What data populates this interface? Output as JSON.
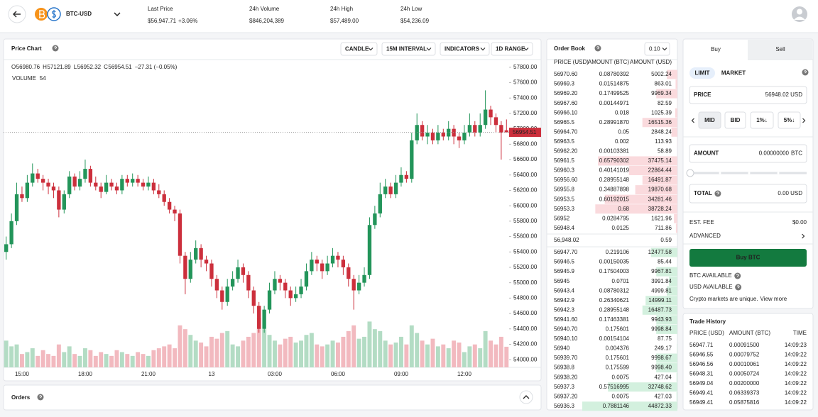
{
  "header": {
    "pair": "BTC-USD",
    "stats": [
      {
        "label": "Last Price",
        "value": "$56,947.71",
        "change": "+3.06%"
      },
      {
        "label": "24h Volume",
        "value": "$846,204,389"
      },
      {
        "label": "24h High",
        "value": "$57,489.00"
      },
      {
        "label": "24h Low",
        "value": "$54,236.09"
      }
    ]
  },
  "chart_data": {
    "type": "candlestick",
    "title": "Price Chart",
    "controls": [
      "CANDLE",
      "15M INTERVAL",
      "INDICATORS",
      "1D RANGE"
    ],
    "legend_keys": [
      "O",
      "H",
      "L",
      "C"
    ],
    "change": "−27.31 (−0.05%)",
    "volume_label": "VOLUME",
    "categories": [
      null,
      null,
      null,
      "15:00",
      null,
      null,
      null,
      null,
      null,
      null,
      null,
      null,
      null,
      null,
      null,
      "18:00",
      null,
      null,
      null,
      null,
      null,
      null,
      null,
      null,
      null,
      null,
      null,
      "21:00",
      null,
      null,
      null,
      null,
      null,
      null,
      null,
      null,
      null,
      null,
      null,
      "13",
      null,
      null,
      null,
      null,
      null,
      null,
      null,
      null,
      null,
      null,
      null,
      "03:00",
      null,
      null,
      null,
      null,
      null,
      null,
      null,
      null,
      null,
      null,
      null,
      "06:00",
      null,
      null,
      null,
      null,
      null,
      null,
      null,
      null,
      null,
      null,
      null,
      "09:00",
      null,
      null,
      null,
      null,
      null,
      null,
      null,
      null,
      null,
      null,
      null,
      "12:00",
      null,
      null,
      null,
      null,
      null,
      null,
      null,
      null
    ],
    "open": [
      55400,
      55500,
      55800,
      56150,
      56100,
      56300,
      56420,
      56350,
      56300,
      56250,
      56200,
      55950,
      56150,
      56380,
      56250,
      56350,
      56480,
      56300,
      56250,
      56180,
      56300,
      56250,
      56200,
      56350,
      56300,
      56350,
      56300,
      56250,
      56300,
      56200,
      56150,
      56050,
      55950,
      55900,
      55350,
      55050,
      55300,
      55450,
      55300,
      55250,
      55050,
      54900,
      54750,
      54950,
      55050,
      55200,
      55100,
      54900,
      54700,
      54400,
      54650,
      54900,
      55050,
      55000,
      54900,
      54800,
      54850,
      54950,
      55150,
      55300,
      55250,
      55150,
      55250,
      55350,
      55300,
      55200,
      55050,
      54900,
      55000,
      55100,
      55750,
      55900,
      56150,
      56250,
      56150,
      56300,
      56400,
      56350,
      56850,
      57050,
      56900,
      56950,
      56850,
      56950,
      56900,
      57000,
      56900,
      56850,
      56950,
      57050,
      56950,
      57050,
      57250,
      57150,
      57050,
      56980.76
    ],
    "high": [
      55600,
      55900,
      56300,
      56250,
      56400,
      56550,
      56480,
      56400,
      56350,
      56300,
      56250,
      56200,
      56450,
      56420,
      56450,
      56600,
      56520,
      56380,
      56300,
      56400,
      56350,
      56300,
      56400,
      56400,
      56420,
      56400,
      56350,
      56380,
      56350,
      56280,
      56200,
      56100,
      56000,
      55950,
      55400,
      55400,
      55550,
      55500,
      55350,
      55300,
      55100,
      54950,
      55050,
      55150,
      55300,
      55250,
      55150,
      54950,
      54750,
      54700,
      55000,
      55150,
      55100,
      55050,
      54950,
      54950,
      55050,
      55250,
      55400,
      55350,
      55300,
      55350,
      55450,
      55400,
      55350,
      55250,
      55100,
      55100,
      55200,
      55850,
      56000,
      56300,
      56350,
      56300,
      56400,
      56500,
      56450,
      56950,
      57200,
      57100,
      57050,
      57000,
      57050,
      57000,
      57100,
      57050,
      56950,
      57050,
      57200,
      57100,
      57200,
      57500,
      57300,
      57200,
      57100,
      57121.89
    ],
    "low": [
      55300,
      55450,
      55750,
      56050,
      56050,
      56250,
      56300,
      56200,
      56150,
      56100,
      55850,
      55900,
      56100,
      56200,
      56200,
      56300,
      56250,
      56200,
      56100,
      56150,
      56200,
      56150,
      56150,
      56250,
      56250,
      56250,
      56200,
      56200,
      56150,
      56100,
      56000,
      55900,
      55800,
      55250,
      54850,
      55000,
      55250,
      55200,
      55150,
      54950,
      54800,
      54650,
      54700,
      54900,
      55000,
      55000,
      54800,
      54600,
      54350,
      54350,
      54600,
      54850,
      54900,
      54800,
      54700,
      54750,
      54800,
      54900,
      55100,
      55150,
      55050,
      55100,
      55200,
      55200,
      55100,
      54950,
      54650,
      54850,
      54950,
      55050,
      55700,
      55850,
      56100,
      56100,
      56100,
      56250,
      56300,
      56300,
      56800,
      56850,
      56800,
      56800,
      56800,
      56850,
      56850,
      56800,
      56750,
      56800,
      56900,
      56900,
      56900,
      57000,
      57050,
      56950,
      56600,
      56952.32
    ],
    "close": [
      55500,
      55800,
      56150,
      56100,
      56300,
      56420,
      56350,
      56300,
      56250,
      56200,
      55950,
      56150,
      56380,
      56250,
      56350,
      56480,
      56300,
      56250,
      56180,
      56300,
      56250,
      56200,
      56350,
      56300,
      56350,
      56300,
      56250,
      56300,
      56200,
      56150,
      56050,
      55950,
      55900,
      55350,
      55050,
      55300,
      55450,
      55300,
      55250,
      55050,
      54900,
      54750,
      54950,
      55050,
      55200,
      55100,
      54900,
      54700,
      54400,
      54650,
      54900,
      55050,
      55000,
      54900,
      54800,
      54850,
      54950,
      55150,
      55300,
      55250,
      55150,
      55250,
      55350,
      55300,
      55200,
      55050,
      54900,
      55000,
      55100,
      55750,
      55900,
      56150,
      56250,
      56150,
      56300,
      56400,
      56350,
      56850,
      57050,
      56900,
      56950,
      56850,
      56950,
      56900,
      57000,
      56900,
      56850,
      56950,
      57050,
      56950,
      57050,
      57250,
      57150,
      57050,
      56950,
      56954.51
    ],
    "volume": [
      70,
      55,
      60,
      35,
      40,
      50,
      30,
      45,
      35,
      30,
      60,
      40,
      55,
      35,
      30,
      50,
      45,
      30,
      40,
      35,
      30,
      45,
      40,
      35,
      30,
      40,
      35,
      30,
      45,
      50,
      55,
      60,
      50,
      110,
      100,
      85,
      70,
      65,
      55,
      80,
      75,
      90,
      95,
      60,
      55,
      70,
      80,
      90,
      130,
      100,
      85,
      70,
      60,
      75,
      80,
      65,
      70,
      85,
      90,
      60,
      55,
      60,
      70,
      65,
      80,
      95,
      110,
      75,
      80,
      120,
      100,
      95,
      70,
      60,
      65,
      80,
      60,
      110,
      90,
      70,
      60,
      75,
      55,
      60,
      50,
      70,
      65,
      40,
      55,
      60,
      50,
      95,
      70,
      60,
      80,
      54
    ],
    "up_color": "#23955a",
    "down_color": "#cc2f3c",
    "up_volume_color": "#b3dcc4",
    "down_volume_color": "#f2b9bf",
    "ylim": [
      53900,
      57900
    ],
    "yticks": [
      {
        "value": 54000,
        "label": "54000.00"
      },
      {
        "value": 54200,
        "label": "54200.00"
      },
      {
        "value": 54400,
        "label": "54400.00"
      },
      {
        "value": 54600,
        "label": "54600.00"
      },
      {
        "value": 54800,
        "label": "54800.00"
      },
      {
        "value": 55000,
        "label": "55000.00"
      },
      {
        "value": 55200,
        "label": "55200.00"
      },
      {
        "value": 55400,
        "label": "55400.00"
      },
      {
        "value": 55600,
        "label": "55600.00"
      },
      {
        "value": 55800,
        "label": "55800.00"
      },
      {
        "value": 56000,
        "label": "56000.00"
      },
      {
        "value": 56200,
        "label": "56200.00"
      },
      {
        "value": 56400,
        "label": "56400.00"
      },
      {
        "value": 56600,
        "label": "56600.00"
      },
      {
        "value": 56800,
        "label": "56800.00"
      },
      {
        "value": 57000,
        "label": "57000.00"
      },
      {
        "value": 57200,
        "label": "57200.00"
      },
      {
        "value": 57400,
        "label": "57400.00"
      },
      {
        "value": 57600,
        "label": "57600.00"
      },
      {
        "value": 57800,
        "label": "57800.00"
      }
    ],
    "grid": false
  },
  "orders": {
    "title": "Orders"
  },
  "order_book": {
    "title": "Order Book",
    "increment": "0.10",
    "columns": [
      "PRICE (USD)",
      "AMOUNT (BTC)",
      "AMOUNT (USD)"
    ],
    "ask_color": "#c0392b",
    "bid_color": "#2e8b57",
    "ask_depth_color": "#fadadd",
    "bid_depth_color": "#d3f0de",
    "asks": [
      [
        "56970.60",
        "0.08780392",
        "5002.24"
      ],
      [
        "56969.3",
        "0.01514875",
        "863.01"
      ],
      [
        "56969.20",
        "0.17499525",
        "9969.34"
      ],
      [
        "56967.60",
        "0.00144971",
        "82.59"
      ],
      [
        "56966.10",
        "0.018",
        "1025.39"
      ],
      [
        "56965.5",
        "0.28991870",
        "16515.36"
      ],
      [
        "56964.70",
        "0.05",
        "2848.24"
      ],
      [
        "56963.5",
        "0.002",
        "113.93"
      ],
      [
        "56962.20",
        "0.00103381",
        "58.89"
      ],
      [
        "56961.5",
        "0.65790302",
        "37475.14"
      ],
      [
        "56960.3",
        "0.40141019",
        "22864.44"
      ],
      [
        "56956.60",
        "0.28955148",
        "16491.87"
      ],
      [
        "56955.8",
        "0.34887898",
        "19870.68"
      ],
      [
        "56953.5",
        "0.60192015",
        "34281.46"
      ],
      [
        "56953.3",
        "0.68",
        "38728.24"
      ],
      [
        "56952",
        "0.0284795",
        "1621.96"
      ],
      [
        "56948.4",
        "0.0125",
        "711.86"
      ]
    ],
    "mid": [
      "56,948.02",
      "0.59"
    ],
    "bids": [
      [
        "56947.70",
        "0.219106",
        "12477.58"
      ],
      [
        "56946.5",
        "0.00150035",
        "85.44"
      ],
      [
        "56945.9",
        "0.17504003",
        "9967.81"
      ],
      [
        "56945",
        "0.0701",
        "3991.84"
      ],
      [
        "56943.4",
        "0.08780312",
        "4999.81"
      ],
      [
        "56942.9",
        "0.26340621",
        "14999.11"
      ],
      [
        "56942.3",
        "0.28955148",
        "16487.73"
      ],
      [
        "56941.60",
        "0.17463381",
        "9943.93"
      ],
      [
        "56940.70",
        "0.175601",
        "9998.84"
      ],
      [
        "56940.10",
        "0.00154104",
        "87.75"
      ],
      [
        "56940",
        "0.004376",
        "249.17"
      ],
      [
        "56939.70",
        "0.175601",
        "9998.67"
      ],
      [
        "56938.8",
        "0.175599",
        "9998.40"
      ],
      [
        "56938.20",
        "0.0075",
        "427.04"
      ],
      [
        "56937.3",
        "0.57516995",
        "32748.62"
      ],
      [
        "56937.20",
        "0.0075",
        "427.03"
      ],
      [
        "56936.3",
        "0.7881146",
        "44872.33"
      ]
    ]
  },
  "trade_form": {
    "tabs": [
      "Buy",
      "Sell"
    ],
    "order_types": [
      "LIMIT",
      "MARKET"
    ],
    "price": {
      "label": "PRICE",
      "value": "56948.02",
      "unit": "USD"
    },
    "presets": [
      "MID",
      "BID",
      "1%↓",
      "5%↓"
    ],
    "amount": {
      "label": "AMOUNT",
      "value": "0.00000000",
      "unit": "BTC"
    },
    "total": {
      "label": "TOTAL",
      "value": "0.00",
      "unit": "USD"
    },
    "fee": {
      "label": "EST. FEE",
      "value": "$0.00"
    },
    "advanced": "ADVANCED",
    "submit": "Buy BTC",
    "balances": [
      "BTC AVAILABLE",
      "USD AVAILABLE"
    ],
    "note": "Crypto markets are unique.",
    "link": "View more"
  },
  "trade_history": {
    "title": "Trade History",
    "columns": [
      "PRICE (USD)",
      "AMOUNT (BTC)",
      "TIME"
    ],
    "rows": [
      [
        "56947.71",
        "0.00091500",
        "14:09:23"
      ],
      [
        "56946.55",
        "0.00079752",
        "14:09:22"
      ],
      [
        "56946.56",
        "0.00010061",
        "14:09:22"
      ],
      [
        "56948.31",
        "0.00050724",
        "14:09:22"
      ],
      [
        "56949.04",
        "0.00200000",
        "14:09:22"
      ],
      [
        "56949.41",
        "0.06339373",
        "14:09:22"
      ],
      [
        "56949.41",
        "0.05875816",
        "14:09:22"
      ]
    ],
    "row_colors": [
      "#c0392b",
      "#c0392b",
      "#c0392b",
      "#2e8b57",
      "#c0392b",
      "#c0392b",
      "#c0392b"
    ]
  }
}
